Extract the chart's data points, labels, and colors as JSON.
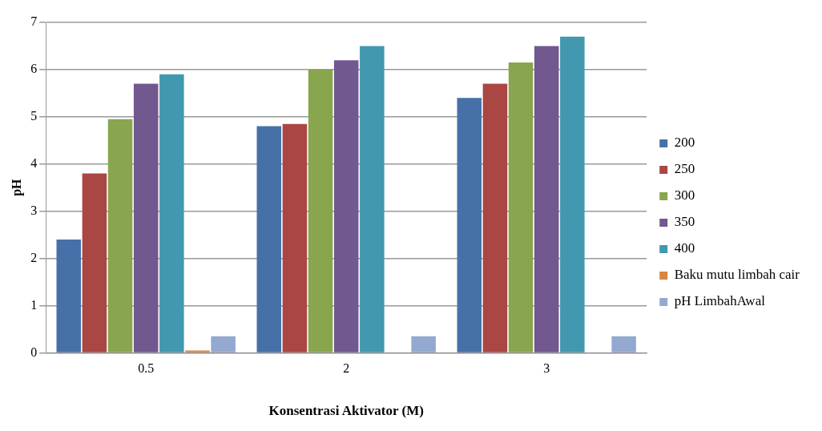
{
  "chart_data": {
    "type": "bar",
    "xlabel": "Konsentrasi Aktivator (M)",
    "ylabel": "pH",
    "categories": [
      "0.5",
      "2",
      "3"
    ],
    "series": [
      {
        "name": "200",
        "color": "#4571a8",
        "values": [
          2.4,
          4.8,
          5.4
        ]
      },
      {
        "name": "250",
        "color": "#aa4643",
        "values": [
          3.8,
          4.85,
          5.7
        ]
      },
      {
        "name": "300",
        "color": "#89a54e",
        "values": [
          4.95,
          6.0,
          6.15
        ]
      },
      {
        "name": "350",
        "color": "#71588f",
        "values": [
          5.7,
          6.2,
          6.5
        ]
      },
      {
        "name": "400",
        "color": "#4198af",
        "values": [
          5.9,
          6.5,
          6.7
        ]
      },
      {
        "name": "Baku mutu limbah cair",
        "color": "#db843d",
        "values": [
          0.05,
          null,
          null
        ]
      },
      {
        "name": "pH LimbahAwal",
        "color": "#93a9cf",
        "values": [
          0.35,
          0.35,
          0.35
        ]
      }
    ],
    "ylim": [
      0,
      7
    ],
    "yticks": [
      0,
      1,
      2,
      3,
      4,
      5,
      6,
      7
    ],
    "grid": "y",
    "legend": "right"
  }
}
